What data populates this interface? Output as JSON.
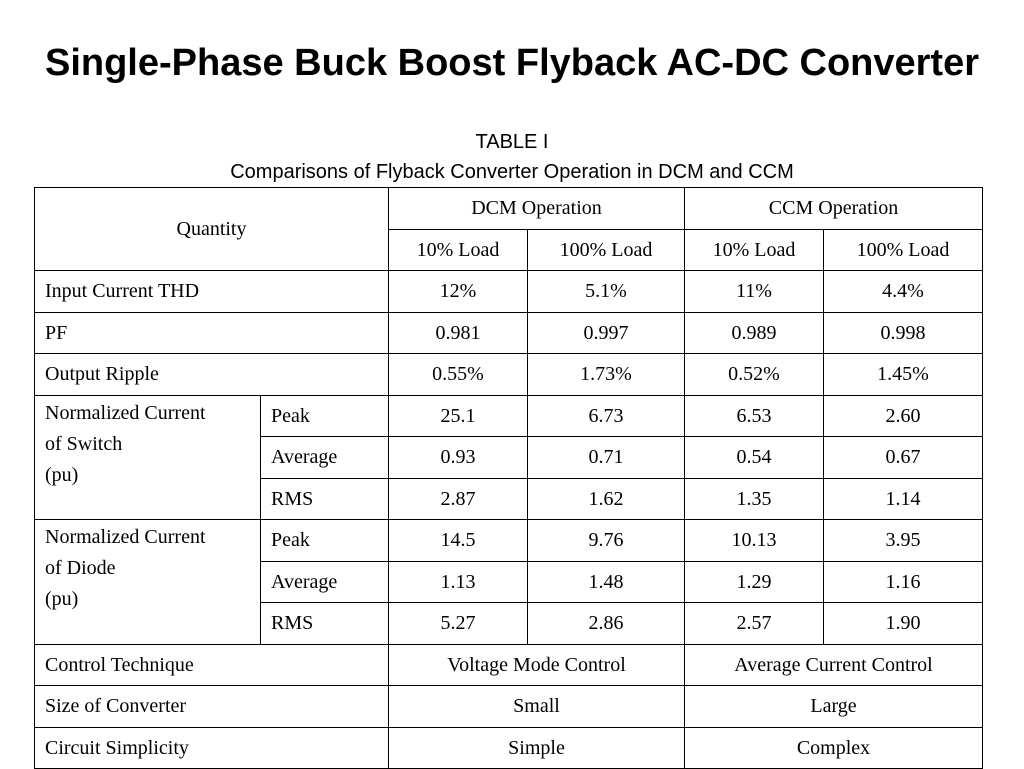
{
  "title": "Single-Phase Buck Boost Flyback AC-DC Converter",
  "caption": {
    "label": "TABLE I",
    "text": "Comparisons of Flyback Converter Operation in DCM and CCM"
  },
  "table": {
    "quantity_header": "Quantity",
    "groups": [
      "DCM Operation",
      "CCM Operation"
    ],
    "subheaders": [
      "10% Load",
      "100% Load",
      "10% Load",
      "100% Load"
    ],
    "simple_rows": [
      {
        "label": "Input Current THD",
        "values": [
          "12%",
          "5.1%",
          "11%",
          "4.4%"
        ]
      },
      {
        "label": "PF",
        "values": [
          "0.981",
          "0.997",
          "0.989",
          "0.998"
        ]
      },
      {
        "label": "Output Ripple",
        "values": [
          "0.55%",
          "1.73%",
          "0.52%",
          "1.45%"
        ]
      }
    ],
    "grouped_rows": [
      {
        "label_lines": [
          "Normalized Current",
          "of Switch",
          "(pu)"
        ],
        "rows": [
          {
            "label": "Peak",
            "values": [
              "25.1",
              "6.73",
              "6.53",
              "2.60"
            ]
          },
          {
            "label": "Average",
            "values": [
              "0.93",
              "0.71",
              "0.54",
              "0.67"
            ]
          },
          {
            "label": "RMS",
            "values": [
              "2.87",
              "1.62",
              "1.35",
              "1.14"
            ]
          }
        ]
      },
      {
        "label_lines": [
          "Normalized Current",
          "of Diode",
          "(pu)"
        ],
        "rows": [
          {
            "label": "Peak",
            "values": [
              "14.5",
              "9.76",
              "10.13",
              "3.95"
            ]
          },
          {
            "label": "Average",
            "values": [
              "1.13",
              "1.48",
              "1.29",
              "1.16"
            ]
          },
          {
            "label": "RMS",
            "values": [
              "5.27",
              "2.86",
              "2.57",
              "1.90"
            ]
          }
        ]
      }
    ],
    "merged_rows": [
      {
        "label": "Control Technique",
        "values": [
          "Voltage Mode Control",
          "Average Current Control"
        ]
      },
      {
        "label": "Size of Converter",
        "values": [
          "Small",
          "Large"
        ]
      },
      {
        "label": "Circuit Simplicity",
        "values": [
          "Simple",
          "Complex"
        ]
      }
    ]
  }
}
